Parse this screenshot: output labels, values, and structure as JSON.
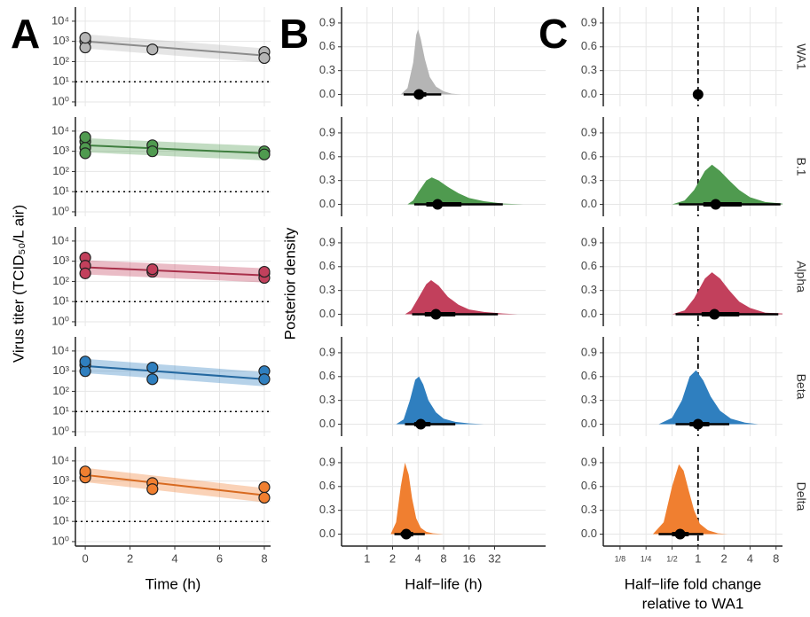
{
  "chart_data": [
    {
      "type": "scatter",
      "panel": "A",
      "ylabel": "Virus titer (TCID₅₀/L air)",
      "xlabel": [
        "Time (h)"
      ],
      "xlim": [
        -0.44,
        8.28
      ],
      "xticks": [
        0,
        2,
        4,
        6,
        8
      ],
      "ylog": true,
      "ylim": [
        0.6,
        50000
      ],
      "yticks": [
        {
          "value": 1,
          "label": "10⁰"
        },
        {
          "value": 10,
          "label": "10¹"
        },
        {
          "value": 100,
          "label": "10²"
        },
        {
          "value": 1000,
          "label": "10³"
        },
        {
          "value": 10000,
          "label": "10⁴"
        }
      ],
      "grid": true,
      "hline": 10,
      "facets": [
        {
          "color": "#b5b5b5",
          "line_color": "#8c8c8c",
          "x": [
            0,
            0,
            0,
            3,
            8,
            8
          ],
          "y": [
            1000,
            500,
            1500,
            400,
            300,
            150
          ],
          "fit": {
            "x": [
              0,
              8
            ],
            "y": [
              1000,
              200
            ]
          }
        },
        {
          "color": "#4f9a4f",
          "line_color": "#3f7f3f",
          "x": [
            0,
            0,
            0,
            0,
            3,
            3,
            8,
            8
          ],
          "y": [
            3000,
            1500,
            800,
            5000,
            2000,
            1000,
            1000,
            700
          ],
          "fit": {
            "x": [
              0,
              8
            ],
            "y": [
              2000,
              800
            ]
          }
        },
        {
          "color": "#c2405c",
          "line_color": "#a8304a",
          "x": [
            0,
            0,
            0,
            3,
            3,
            8,
            8,
            8
          ],
          "y": [
            1500,
            600,
            250,
            300,
            400,
            250,
            150,
            300
          ],
          "fit": {
            "x": [
              0,
              8
            ],
            "y": [
              500,
              200
            ]
          }
        },
        {
          "color": "#2f7fbf",
          "line_color": "#2468a0",
          "x": [
            0,
            0,
            0,
            3,
            3,
            8,
            8
          ],
          "y": [
            2000,
            1000,
            3000,
            1500,
            400,
            1000,
            400
          ],
          "fit": {
            "x": [
              0,
              8
            ],
            "y": [
              1800,
              400
            ]
          }
        },
        {
          "color": "#f07f30",
          "line_color": "#d86a20",
          "x": [
            0,
            0,
            0,
            3,
            3,
            8,
            8
          ],
          "y": [
            2500,
            1500,
            3000,
            800,
            400,
            500,
            150
          ],
          "fit": {
            "x": [
              0,
              8
            ],
            "y": [
              2000,
              200
            ]
          }
        }
      ]
    },
    {
      "type": "density",
      "panel": "B",
      "ylabel": "Posterior density",
      "xlabel": [
        "Half−life (h)"
      ],
      "xlog": true,
      "xlim": [
        0.5,
        128
      ],
      "xticks": [
        1,
        2,
        4,
        8,
        16,
        32
      ],
      "ylim": [
        -0.15,
        1.1
      ],
      "yticks": [
        {
          "value": 0,
          "label": "0.0"
        },
        0.3,
        0.6,
        0.9
      ],
      "grid": true,
      "facets": [
        {
          "color": "#b5b5b5",
          "x": [
            2.5,
            3,
            3.5,
            3.8,
            4,
            4.3,
            4.8,
            5.5,
            6.5,
            8,
            10,
            13
          ],
          "y": [
            0,
            0.08,
            0.4,
            0.75,
            0.82,
            0.7,
            0.45,
            0.22,
            0.1,
            0.04,
            0.01,
            0
          ],
          "median": 4.1,
          "interval_66": [
            3.6,
            5
          ],
          "interval_95": [
            2.7,
            7.5
          ]
        },
        {
          "color": "#4f9a4f",
          "x": [
            3,
            3.5,
            4,
            5,
            5.8,
            7,
            9,
            12,
            16,
            24,
            40,
            70
          ],
          "y": [
            0,
            0.05,
            0.15,
            0.3,
            0.34,
            0.3,
            0.22,
            0.14,
            0.08,
            0.04,
            0.01,
            0
          ],
          "median": 6.8,
          "interval_66": [
            5,
            13
          ],
          "interval_95": [
            3.6,
            40
          ]
        },
        {
          "color": "#c2405c",
          "x": [
            2.8,
            3.3,
            4,
            5,
            5.7,
            7,
            9,
            12,
            16,
            24,
            40,
            60
          ],
          "y": [
            0,
            0.05,
            0.2,
            0.38,
            0.43,
            0.36,
            0.22,
            0.12,
            0.06,
            0.03,
            0.01,
            0
          ],
          "median": 6.5,
          "interval_66": [
            4.8,
            11
          ],
          "interval_95": [
            3.4,
            35
          ]
        },
        {
          "color": "#2f7fbf",
          "x": [
            2.2,
            2.7,
            3.2,
            3.7,
            4.1,
            4.6,
            5.3,
            6.5,
            8,
            11,
            16,
            24
          ],
          "y": [
            0,
            0.06,
            0.3,
            0.56,
            0.6,
            0.5,
            0.3,
            0.15,
            0.07,
            0.03,
            0.01,
            0
          ],
          "median": 4.3,
          "interval_66": [
            3.6,
            5.6
          ],
          "interval_95": [
            2.8,
            11
          ]
        },
        {
          "color": "#f07f30",
          "x": [
            1.9,
            2.2,
            2.5,
            2.8,
            3.1,
            3.4,
            3.8,
            4.3,
            5,
            6,
            8
          ],
          "y": [
            0,
            0.15,
            0.6,
            0.9,
            0.75,
            0.45,
            0.2,
            0.08,
            0.03,
            0.01,
            0
          ],
          "median": 2.9,
          "interval_66": [
            2.5,
            3.5
          ],
          "interval_95": [
            2.1,
            4.8
          ]
        }
      ]
    },
    {
      "type": "density",
      "panel": "C",
      "xlabel": [
        "Half−life fold change",
        "relative to WA1"
      ],
      "xlog": true,
      "xlim": [
        0.08,
        9.5
      ],
      "xticks": [
        {
          "value": 0.125,
          "label": "1/8"
        },
        {
          "value": 0.25,
          "label": "1/4"
        },
        {
          "value": 0.5,
          "label": "1/2"
        },
        1,
        2,
        4,
        8
      ],
      "ylim": [
        -0.15,
        1.1
      ],
      "yticks": [
        {
          "value": 0,
          "label": "0.0"
        },
        0.3,
        0.6,
        0.9
      ],
      "grid": true,
      "vline": 1,
      "facets": [
        {
          "name": "WA1",
          "color": "#000000",
          "median": 1
        },
        {
          "name": "B.1",
          "color": "#4f9a4f",
          "x": [
            0.5,
            0.7,
            0.9,
            1.2,
            1.45,
            1.8,
            2.3,
            3,
            4,
            6,
            9.5
          ],
          "y": [
            0,
            0.05,
            0.18,
            0.42,
            0.5,
            0.42,
            0.3,
            0.18,
            0.09,
            0.03,
            0.01
          ],
          "median": 1.6,
          "interval_66": [
            1.15,
            3.2
          ],
          "interval_95": [
            0.6,
            9
          ]
        },
        {
          "name": "Alpha",
          "color": "#c2405c",
          "x": [
            0.5,
            0.7,
            0.9,
            1.2,
            1.45,
            1.8,
            2.3,
            3,
            4,
            6,
            9.5
          ],
          "y": [
            0,
            0.05,
            0.2,
            0.45,
            0.53,
            0.45,
            0.3,
            0.16,
            0.08,
            0.02,
            0.01
          ],
          "median": 1.55,
          "interval_66": [
            1.1,
            3
          ],
          "interval_95": [
            0.55,
            8.5
          ]
        },
        {
          "name": "Beta",
          "color": "#2f7fbf",
          "x": [
            0.35,
            0.5,
            0.65,
            0.8,
            0.95,
            1.15,
            1.4,
            1.8,
            2.4,
            3.5,
            5
          ],
          "y": [
            0,
            0.08,
            0.3,
            0.6,
            0.68,
            0.55,
            0.35,
            0.17,
            0.07,
            0.02,
            0
          ],
          "median": 1.0,
          "interval_66": [
            0.8,
            1.35
          ],
          "interval_95": [
            0.55,
            2.3
          ]
        },
        {
          "name": "Delta",
          "color": "#f07f30",
          "x": [
            0.3,
            0.4,
            0.5,
            0.6,
            0.68,
            0.78,
            0.9,
            1.05,
            1.3,
            1.7,
            2.2
          ],
          "y": [
            0,
            0.15,
            0.6,
            0.88,
            0.8,
            0.55,
            0.3,
            0.13,
            0.05,
            0.01,
            0
          ],
          "median": 0.62,
          "interval_66": [
            0.5,
            0.78
          ],
          "interval_95": [
            0.35,
            1.15
          ]
        }
      ]
    }
  ]
}
